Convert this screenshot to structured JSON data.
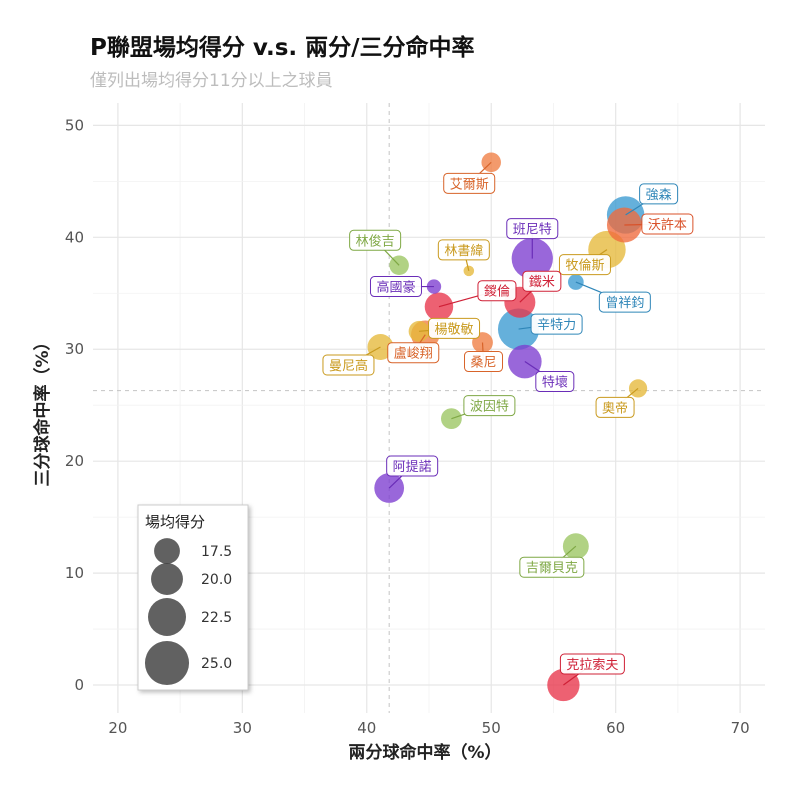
{
  "title": "P聯盟場均得分 v.s. 兩分/三分命中率",
  "subtitle": "僅列出場均得分11分以上之球員",
  "chart_data": {
    "type": "scatter",
    "title": "P聯盟場均得分 v.s. 兩分/三分命中率",
    "subtitle": "僅列出場均得分11分以上之球員",
    "xlabel": "兩分球命中率（%）",
    "ylabel": "三分球命中率（%）",
    "xlim": [
      18,
      72
    ],
    "ylim": [
      -2.5,
      52
    ],
    "xticks": [
      20,
      30,
      40,
      50,
      60,
      70
    ],
    "yticks": [
      0,
      10,
      20,
      30,
      40,
      50
    ],
    "reference_lines": {
      "x": 41.8,
      "y": 26.3
    },
    "size_legend": {
      "title": "場均得分",
      "position": "bottom-left",
      "values": [
        "17.5",
        "20.0",
        "22.5",
        "25.0"
      ]
    },
    "points": [
      {
        "name": "艾爾斯",
        "x": 50.0,
        "y": 46.7,
        "ppg": 14.5,
        "color": "#F07D43"
      },
      {
        "name": "強森",
        "x": 60.8,
        "y": 42.0,
        "ppg": 21.5,
        "color": "#3A9AD1"
      },
      {
        "name": "沃許本",
        "x": 60.7,
        "y": 41.1,
        "ppg": 20.5,
        "color": "#F06A3C"
      },
      {
        "name": "班尼特",
        "x": 53.3,
        "y": 38.1,
        "ppg": 23.0,
        "color": "#7C3CCF"
      },
      {
        "name": "牧倫斯",
        "x": 59.3,
        "y": 38.9,
        "ppg": 21.5,
        "color": "#E6B83A"
      },
      {
        "name": "林俊吉",
        "x": 42.6,
        "y": 37.5,
        "ppg": 14.5,
        "color": "#9BC562"
      },
      {
        "name": "林書緯",
        "x": 48.2,
        "y": 37.0,
        "ppg": 11.0,
        "color": "#E6B83A"
      },
      {
        "name": "鐵米",
        "x": 52.3,
        "y": 34.2,
        "ppg": 19.0,
        "color": "#E8344A"
      },
      {
        "name": "曾祥鈞",
        "x": 56.8,
        "y": 36.0,
        "ppg": 13.0,
        "color": "#3A9AD1"
      },
      {
        "name": "高國豪",
        "x": 45.4,
        "y": 35.6,
        "ppg": 12.5,
        "color": "#7C3CCF"
      },
      {
        "name": "鍐倫",
        "x": 45.8,
        "y": 33.8,
        "ppg": 18.0,
        "color": "#E8344A"
      },
      {
        "name": "辛特力",
        "x": 52.2,
        "y": 31.8,
        "ppg": 23.0,
        "color": "#3A9AD1"
      },
      {
        "name": "楊敬敏",
        "x": 44.2,
        "y": 31.6,
        "ppg": 15.0,
        "color": "#E6B83A"
      },
      {
        "name": "曼尼高",
        "x": 41.1,
        "y": 30.2,
        "ppg": 17.0,
        "color": "#E6B83A"
      },
      {
        "name": "盧峻翔",
        "x": 44.7,
        "y": 31.3,
        "ppg": 18.0,
        "color": "#F07D43"
      },
      {
        "name": "桑尼",
        "x": 49.3,
        "y": 30.6,
        "ppg": 15.0,
        "color": "#F07D43"
      },
      {
        "name": "特壞",
        "x": 52.7,
        "y": 28.9,
        "ppg": 20.0,
        "color": "#7C3CCF"
      },
      {
        "name": "奧帝",
        "x": 61.8,
        "y": 26.5,
        "ppg": 14.0,
        "color": "#E6B83A"
      },
      {
        "name": "波因特",
        "x": 46.8,
        "y": 23.8,
        "ppg": 15.0,
        "color": "#9BC562"
      },
      {
        "name": "阿提諾",
        "x": 41.8,
        "y": 17.6,
        "ppg": 18.5,
        "color": "#7C3CCF"
      },
      {
        "name": "吉爾貝克",
        "x": 56.8,
        "y": 12.4,
        "ppg": 17.0,
        "color": "#9BC562"
      },
      {
        "name": "克拉索夫",
        "x": 55.8,
        "y": 0.0,
        "ppg": 19.5,
        "color": "#E8344A"
      }
    ]
  }
}
